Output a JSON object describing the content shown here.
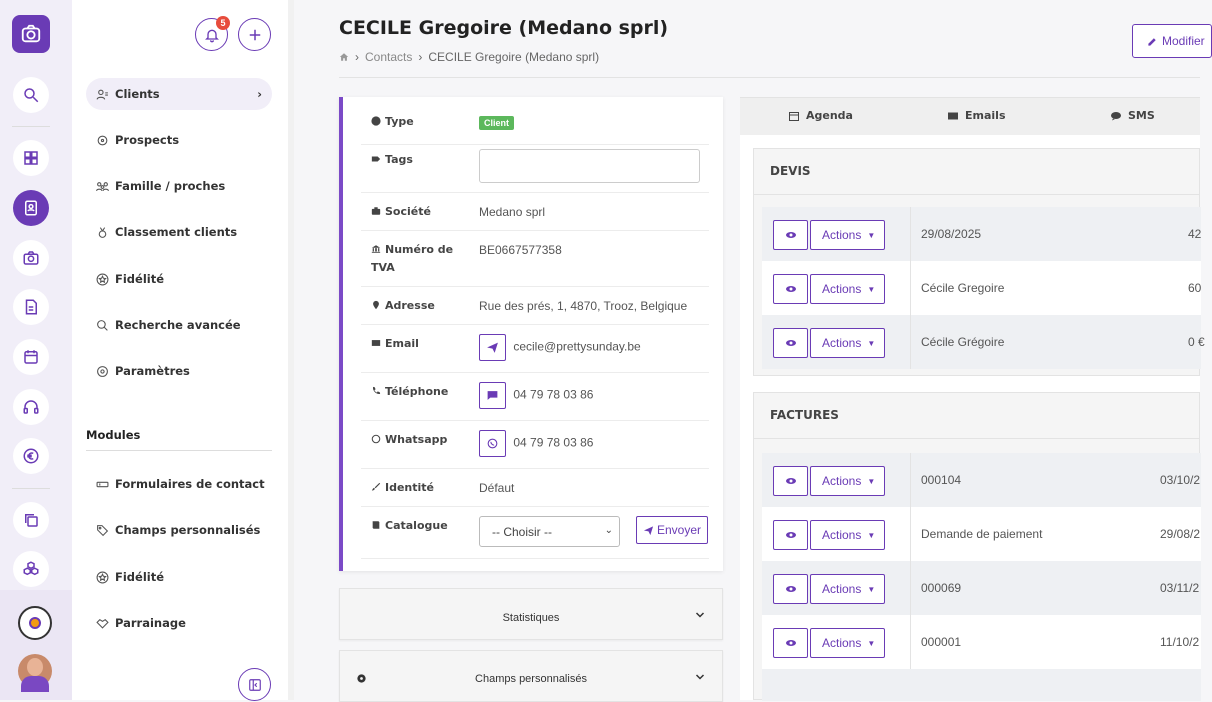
{
  "rail": {
    "items": [
      "search-icon",
      "dashboard-icon",
      "contacts-icon",
      "camera-icon",
      "document-icon",
      "calendar-icon",
      "support-icon",
      "euro-icon",
      "copy-icon",
      "cubes-icon"
    ]
  },
  "subnav": {
    "notification_count": "5",
    "items": [
      {
        "label": "Clients",
        "icon": "user-list-icon",
        "active": true
      },
      {
        "label": "Prospects",
        "icon": "target-icon"
      },
      {
        "label": "Famille / proches",
        "icon": "family-icon"
      },
      {
        "label": "Classement clients",
        "icon": "medal-icon"
      },
      {
        "label": "Fidélité",
        "icon": "star-icon"
      },
      {
        "label": "Recherche avancée",
        "icon": "search-icon"
      },
      {
        "label": "Paramètres",
        "icon": "settings-icon"
      }
    ],
    "modules_title": "Modules",
    "modules": [
      {
        "label": "Formulaires de contact",
        "icon": "form-icon"
      },
      {
        "label": "Champs personnalisés",
        "icon": "tag-icon"
      },
      {
        "label": "Fidélité",
        "icon": "star-icon"
      },
      {
        "label": "Parrainage",
        "icon": "handshake-icon"
      }
    ]
  },
  "header": {
    "title": "CECILE Gregoire (Medano sprl)",
    "breadcrumb_link": "Contacts",
    "breadcrumb_current": "CECILE Gregoire (Medano sprl)",
    "modify_label": "Modifier"
  },
  "info": {
    "type_label": "Type",
    "type_value": "Client",
    "tags_label": "Tags",
    "societe_label": "Société",
    "societe_value": "Medano sprl",
    "tva_label": "Numéro de TVA",
    "tva_value": "BE0667577358",
    "adresse_label": "Adresse",
    "adresse_value": "Rue des prés, 1, 4870, Trooz, Belgique",
    "email_label": "Email",
    "email_value": "cecile@prettysunday.be",
    "tel_label": "Téléphone",
    "tel_value": "04 79 78 03 86",
    "whatsapp_label": "Whatsapp",
    "whatsapp_value": "04 79 78 03 86",
    "identite_label": "Identité",
    "identite_value": "Défaut",
    "catalogue_label": "Catalogue",
    "catalogue_select": "-- Choisir --",
    "envoyer_label": "Envoyer"
  },
  "panels": {
    "stats": "Statistiques",
    "custom_fields": "Champs personnalisés"
  },
  "tabs": [
    "Agenda",
    "Emails",
    "SMS"
  ],
  "devis": {
    "title": "DEVIS",
    "actions_label": "Actions",
    "rows": [
      {
        "c1": "29/08/2025",
        "c2": "42"
      },
      {
        "c1": "Cécile Gregoire",
        "c2": "60"
      },
      {
        "c1": "Cécile Grégoire",
        "c2": "0 €"
      }
    ]
  },
  "factures": {
    "title": "FACTURES",
    "actions_label": "Actions",
    "rows": [
      {
        "c1": "000104",
        "c2": "03/10/2"
      },
      {
        "c1": "Demande de paiement",
        "c2": "29/08/2"
      },
      {
        "c1": "000069",
        "c2": "03/11/2"
      },
      {
        "c1": "000001",
        "c2": "11/10/2"
      }
    ]
  },
  "colors": {
    "accent": "#6a3bb5",
    "success": "#5cb85c",
    "badge": "#e74c3c"
  }
}
